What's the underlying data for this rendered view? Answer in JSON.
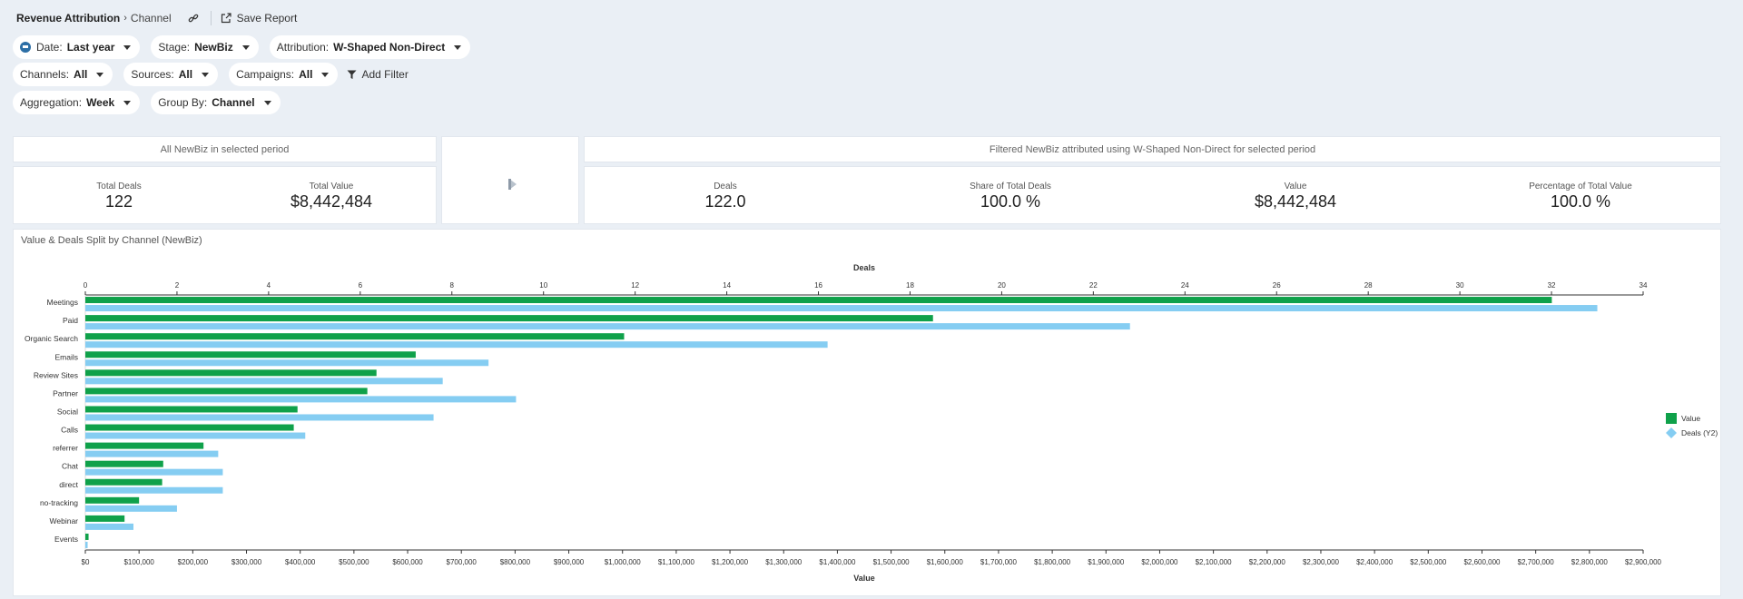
{
  "header": {
    "breadcrumb_main": "Revenue Attribution",
    "breadcrumb_sep": "›",
    "breadcrumb_sub": "Channel",
    "save_label": "Save Report"
  },
  "filters": {
    "date_label": "Date:",
    "date_value": "Last year",
    "stage_label": "Stage:",
    "stage_value": "NewBiz",
    "attribution_label": "Attribution:",
    "attribution_value": "W-Shaped Non-Direct",
    "channels_label": "Channels:",
    "channels_value": "All",
    "sources_label": "Sources:",
    "sources_value": "All",
    "campaigns_label": "Campaigns:",
    "campaigns_value": "All",
    "add_filter_label": "Add Filter",
    "aggregation_label": "Aggregation:",
    "aggregation_value": "Week",
    "groupby_label": "Group By:",
    "groupby_value": "Channel"
  },
  "summary": {
    "all_header": "All NewBiz in selected period",
    "filtered_header": "Filtered NewBiz attributed using W-Shaped Non-Direct for selected period",
    "total_deals_label": "Total Deals",
    "total_deals_value": "122",
    "total_value_label": "Total Value",
    "total_value_value": "$8,442,484",
    "deals_label": "Deals",
    "deals_value": "122.0",
    "share_label": "Share of Total Deals",
    "share_value": "100.0 %",
    "value_label": "Value",
    "value_value": "$8,442,484",
    "pct_label": "Percentage of Total Value",
    "pct_value": "100.0 %"
  },
  "chart_title": "Value & Deals Split by Channel (NewBiz)",
  "colors": {
    "value_bar": "#0fa14a",
    "deals_bar": "#85cdf2",
    "background": "#eaeff5"
  },
  "chart_data": {
    "type": "bar",
    "orientation": "horizontal",
    "categories": [
      "Meetings",
      "Paid",
      "Organic Search",
      "Emails",
      "Review Sites",
      "Partner",
      "Social",
      "Calls",
      "referrer",
      "Chat",
      "direct",
      "no-tracking",
      "Webinar",
      "Events"
    ],
    "series": [
      {
        "name": "Value",
        "axis": "bottom",
        "values": [
          2730000,
          1578000,
          1003000,
          615000,
          542000,
          525000,
          395000,
          388000,
          220000,
          145000,
          143000,
          100000,
          73000,
          6000
        ]
      },
      {
        "name": "Deals (Y2)",
        "axis": "top",
        "values": [
          33.0,
          22.8,
          16.2,
          8.8,
          7.8,
          9.4,
          7.6,
          4.8,
          2.9,
          3.0,
          3.0,
          2.0,
          1.05,
          0.05
        ]
      }
    ],
    "top_axis": {
      "label": "Deals",
      "lim": [
        0,
        34
      ],
      "ticks": [
        "0",
        "2",
        "4",
        "6",
        "8",
        "10",
        "12",
        "14",
        "16",
        "18",
        "20",
        "22",
        "24",
        "26",
        "28",
        "30",
        "32",
        "34"
      ]
    },
    "bottom_axis": {
      "label": "Value",
      "lim": [
        0,
        2900000
      ],
      "ticks": [
        "$0",
        "$100,000",
        "$200,000",
        "$300,000",
        "$400,000",
        "$500,000",
        "$600,000",
        "$700,000",
        "$800,000",
        "$900,000",
        "$1,000,000",
        "$1,100,000",
        "$1,200,000",
        "$1,300,000",
        "$1,400,000",
        "$1,500,000",
        "$1,600,000",
        "$1,700,000",
        "$1,800,000",
        "$1,900,000",
        "$2,000,000",
        "$2,100,000",
        "$2,200,000",
        "$2,300,000",
        "$2,400,000",
        "$2,500,000",
        "$2,600,000",
        "$2,700,000",
        "$2,800,000",
        "$2,900,000"
      ]
    },
    "legend": {
      "placement": "right",
      "entries": [
        "Value",
        "Deals (Y2)"
      ]
    }
  }
}
